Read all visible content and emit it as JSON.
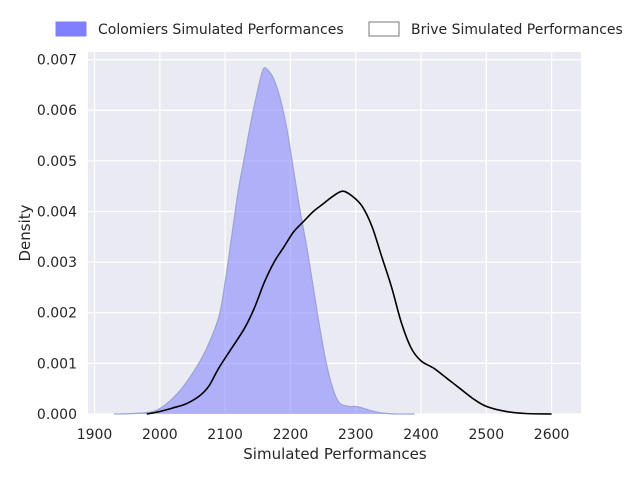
{
  "chart_data": {
    "type": "area",
    "xlabel": "Simulated Performances",
    "ylabel": "Density",
    "xlim": [
      1890,
      2645
    ],
    "ylim": [
      0,
      0.00715
    ],
    "x_ticks": [
      1900,
      2000,
      2100,
      2200,
      2300,
      2400,
      2500,
      2600
    ],
    "x_tick_labels": [
      "1900",
      "2000",
      "2100",
      "2200",
      "2300",
      "2400",
      "2500",
      "2600"
    ],
    "y_ticks": [
      0,
      0.001,
      0.002,
      0.003,
      0.004,
      0.005,
      0.006,
      0.007
    ],
    "y_tick_labels": [
      "0.000",
      "0.001",
      "0.002",
      "0.003",
      "0.004",
      "0.005",
      "0.006",
      "0.007"
    ],
    "grid": true,
    "legend": "top-outside",
    "series": [
      {
        "name": "Colomiers Simulated Performances",
        "style": "filled",
        "fill_color": "#8080ff",
        "line_color": "#9aa3d6",
        "points": [
          [
            1930,
            0
          ],
          [
            1960,
            1e-05
          ],
          [
            1990,
            5e-05
          ],
          [
            2010,
            0.0002
          ],
          [
            2030,
            0.00045
          ],
          [
            2050,
            0.0008
          ],
          [
            2070,
            0.00125
          ],
          [
            2090,
            0.0019
          ],
          [
            2100,
            0.0026
          ],
          [
            2110,
            0.0035
          ],
          [
            2120,
            0.0044
          ],
          [
            2130,
            0.0051
          ],
          [
            2140,
            0.0058
          ],
          [
            2150,
            0.0064
          ],
          [
            2158,
            0.0068
          ],
          [
            2165,
            0.0068
          ],
          [
            2175,
            0.0066
          ],
          [
            2185,
            0.0062
          ],
          [
            2195,
            0.0056
          ],
          [
            2205,
            0.0048
          ],
          [
            2215,
            0.004
          ],
          [
            2225,
            0.0033
          ],
          [
            2235,
            0.0025
          ],
          [
            2245,
            0.0017
          ],
          [
            2255,
            0.001
          ],
          [
            2265,
            0.0005
          ],
          [
            2275,
            0.00022
          ],
          [
            2290,
            0.00015
          ],
          [
            2300,
            0.00015
          ],
          [
            2310,
            0.00012
          ],
          [
            2325,
            6e-05
          ],
          [
            2340,
            2e-05
          ],
          [
            2360,
            0
          ],
          [
            2390,
            0
          ]
        ]
      },
      {
        "name": "Brive Simulated Performances",
        "style": "line",
        "fill_color": "#ffffff",
        "line_color": "#000000",
        "points": [
          [
            1980,
            0
          ],
          [
            2000,
            5e-05
          ],
          [
            2020,
            0.00012
          ],
          [
            2040,
            0.0002
          ],
          [
            2060,
            0.00035
          ],
          [
            2075,
            0.00055
          ],
          [
            2090,
            0.0009
          ],
          [
            2110,
            0.0013
          ],
          [
            2130,
            0.0017
          ],
          [
            2145,
            0.0021
          ],
          [
            2160,
            0.0026
          ],
          [
            2175,
            0.003
          ],
          [
            2190,
            0.0033
          ],
          [
            2205,
            0.0036
          ],
          [
            2220,
            0.0038
          ],
          [
            2235,
            0.004
          ],
          [
            2250,
            0.00415
          ],
          [
            2265,
            0.0043
          ],
          [
            2280,
            0.0044
          ],
          [
            2295,
            0.0043
          ],
          [
            2310,
            0.0041
          ],
          [
            2325,
            0.0037
          ],
          [
            2340,
            0.0031
          ],
          [
            2355,
            0.0025
          ],
          [
            2370,
            0.0018
          ],
          [
            2385,
            0.0013
          ],
          [
            2400,
            0.00105
          ],
          [
            2420,
            0.0009
          ],
          [
            2440,
            0.0007
          ],
          [
            2460,
            0.0005
          ],
          [
            2480,
            0.0003
          ],
          [
            2500,
            0.00015
          ],
          [
            2530,
            5e-05
          ],
          [
            2560,
            1e-05
          ],
          [
            2600,
            0
          ]
        ]
      }
    ]
  }
}
